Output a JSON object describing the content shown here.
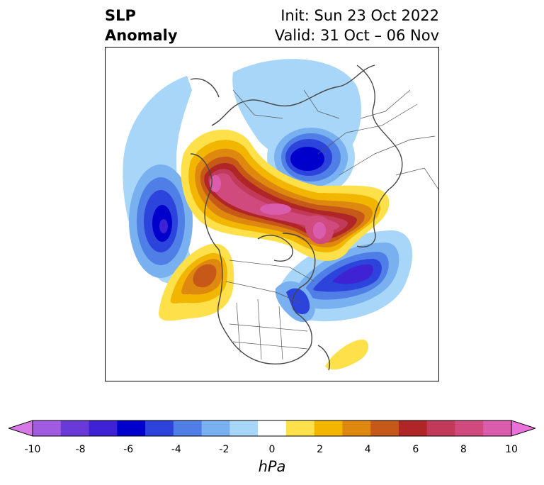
{
  "title": {
    "left_line1": "SLP",
    "left_line2": "Anomaly",
    "right_line1": "Init: Sun 23 Oct 2022",
    "right_line2": "Valid: 31 Oct – 06 Nov"
  },
  "map": {
    "projection": "north-polar-stereographic",
    "features": {
      "negative_centers": [
        "North Pacific",
        "Siberia / Arctic",
        "North Atlantic"
      ],
      "positive_centers": [
        "Alaska–Arctic ridge",
        "Greenland / Arctic",
        "Gulf of Alaska / W Canada",
        "subtropical Atlantic"
      ]
    }
  },
  "colorbar": {
    "unit": "hPa",
    "ticks": [
      "-10",
      "-8",
      "-6",
      "-4",
      "-2",
      "0",
      "2",
      "4",
      "6",
      "8",
      "10"
    ],
    "extend": "both",
    "colors": [
      "#d878e8",
      "#a05be0",
      "#6a3ad8",
      "#3f22d4",
      "#0000cc",
      "#2c43dc",
      "#4f7ee6",
      "#78b0f0",
      "#a8d6f8",
      "#ffffff",
      "#fde04a",
      "#f2b600",
      "#df8810",
      "#c65818",
      "#b02626",
      "#c23a5a",
      "#d04a7e",
      "#da5cac",
      "#e872da"
    ]
  }
}
